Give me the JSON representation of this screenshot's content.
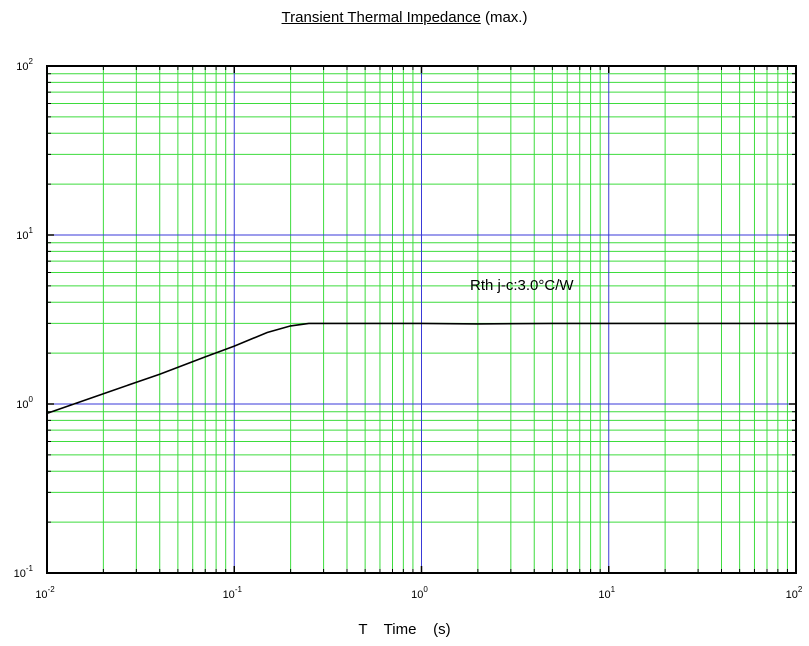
{
  "chart_data": {
    "type": "line",
    "title": "Transient Thermal Impedance",
    "title_suffix": "(max.)",
    "xlabel": "T    Time    (s)",
    "ylabel": "",
    "xscale": "log",
    "yscale": "log",
    "xlim": [
      0.01,
      100
    ],
    "ylim": [
      0.1,
      100
    ],
    "grid": true,
    "x_ticks": [
      {
        "value": 0.01,
        "base": "10",
        "exp": "-2"
      },
      {
        "value": 0.1,
        "base": "10",
        "exp": "-1"
      },
      {
        "value": 1,
        "base": "10",
        "exp": "0"
      },
      {
        "value": 10,
        "base": "10",
        "exp": "1"
      },
      {
        "value": 100,
        "base": "10",
        "exp": "2"
      }
    ],
    "y_ticks": [
      {
        "value": 0.1,
        "base": "10",
        "exp": "-1"
      },
      {
        "value": 1,
        "base": "10",
        "exp": "0"
      },
      {
        "value": 10,
        "base": "10",
        "exp": "1"
      },
      {
        "value": 100,
        "base": "10",
        "exp": "2"
      }
    ],
    "annotations": [
      {
        "text": "Rth j-c:3.0°C/W"
      }
    ],
    "series": [
      {
        "x": [
          0.01,
          0.02,
          0.04,
          0.07,
          0.1,
          0.15,
          0.2,
          0.25,
          0.3,
          0.5,
          1,
          2,
          5,
          10,
          50,
          100
        ],
        "y": [
          0.88,
          1.15,
          1.5,
          1.9,
          2.2,
          2.65,
          2.9,
          3.0,
          3.0,
          3.0,
          3.0,
          2.98,
          3.0,
          3.0,
          3.0,
          3.0
        ]
      }
    ],
    "colors": {
      "major_grid": "#3a3ad8",
      "minor_grid": "#3ddc3d",
      "line": "#000000",
      "frame": "#000000"
    }
  }
}
